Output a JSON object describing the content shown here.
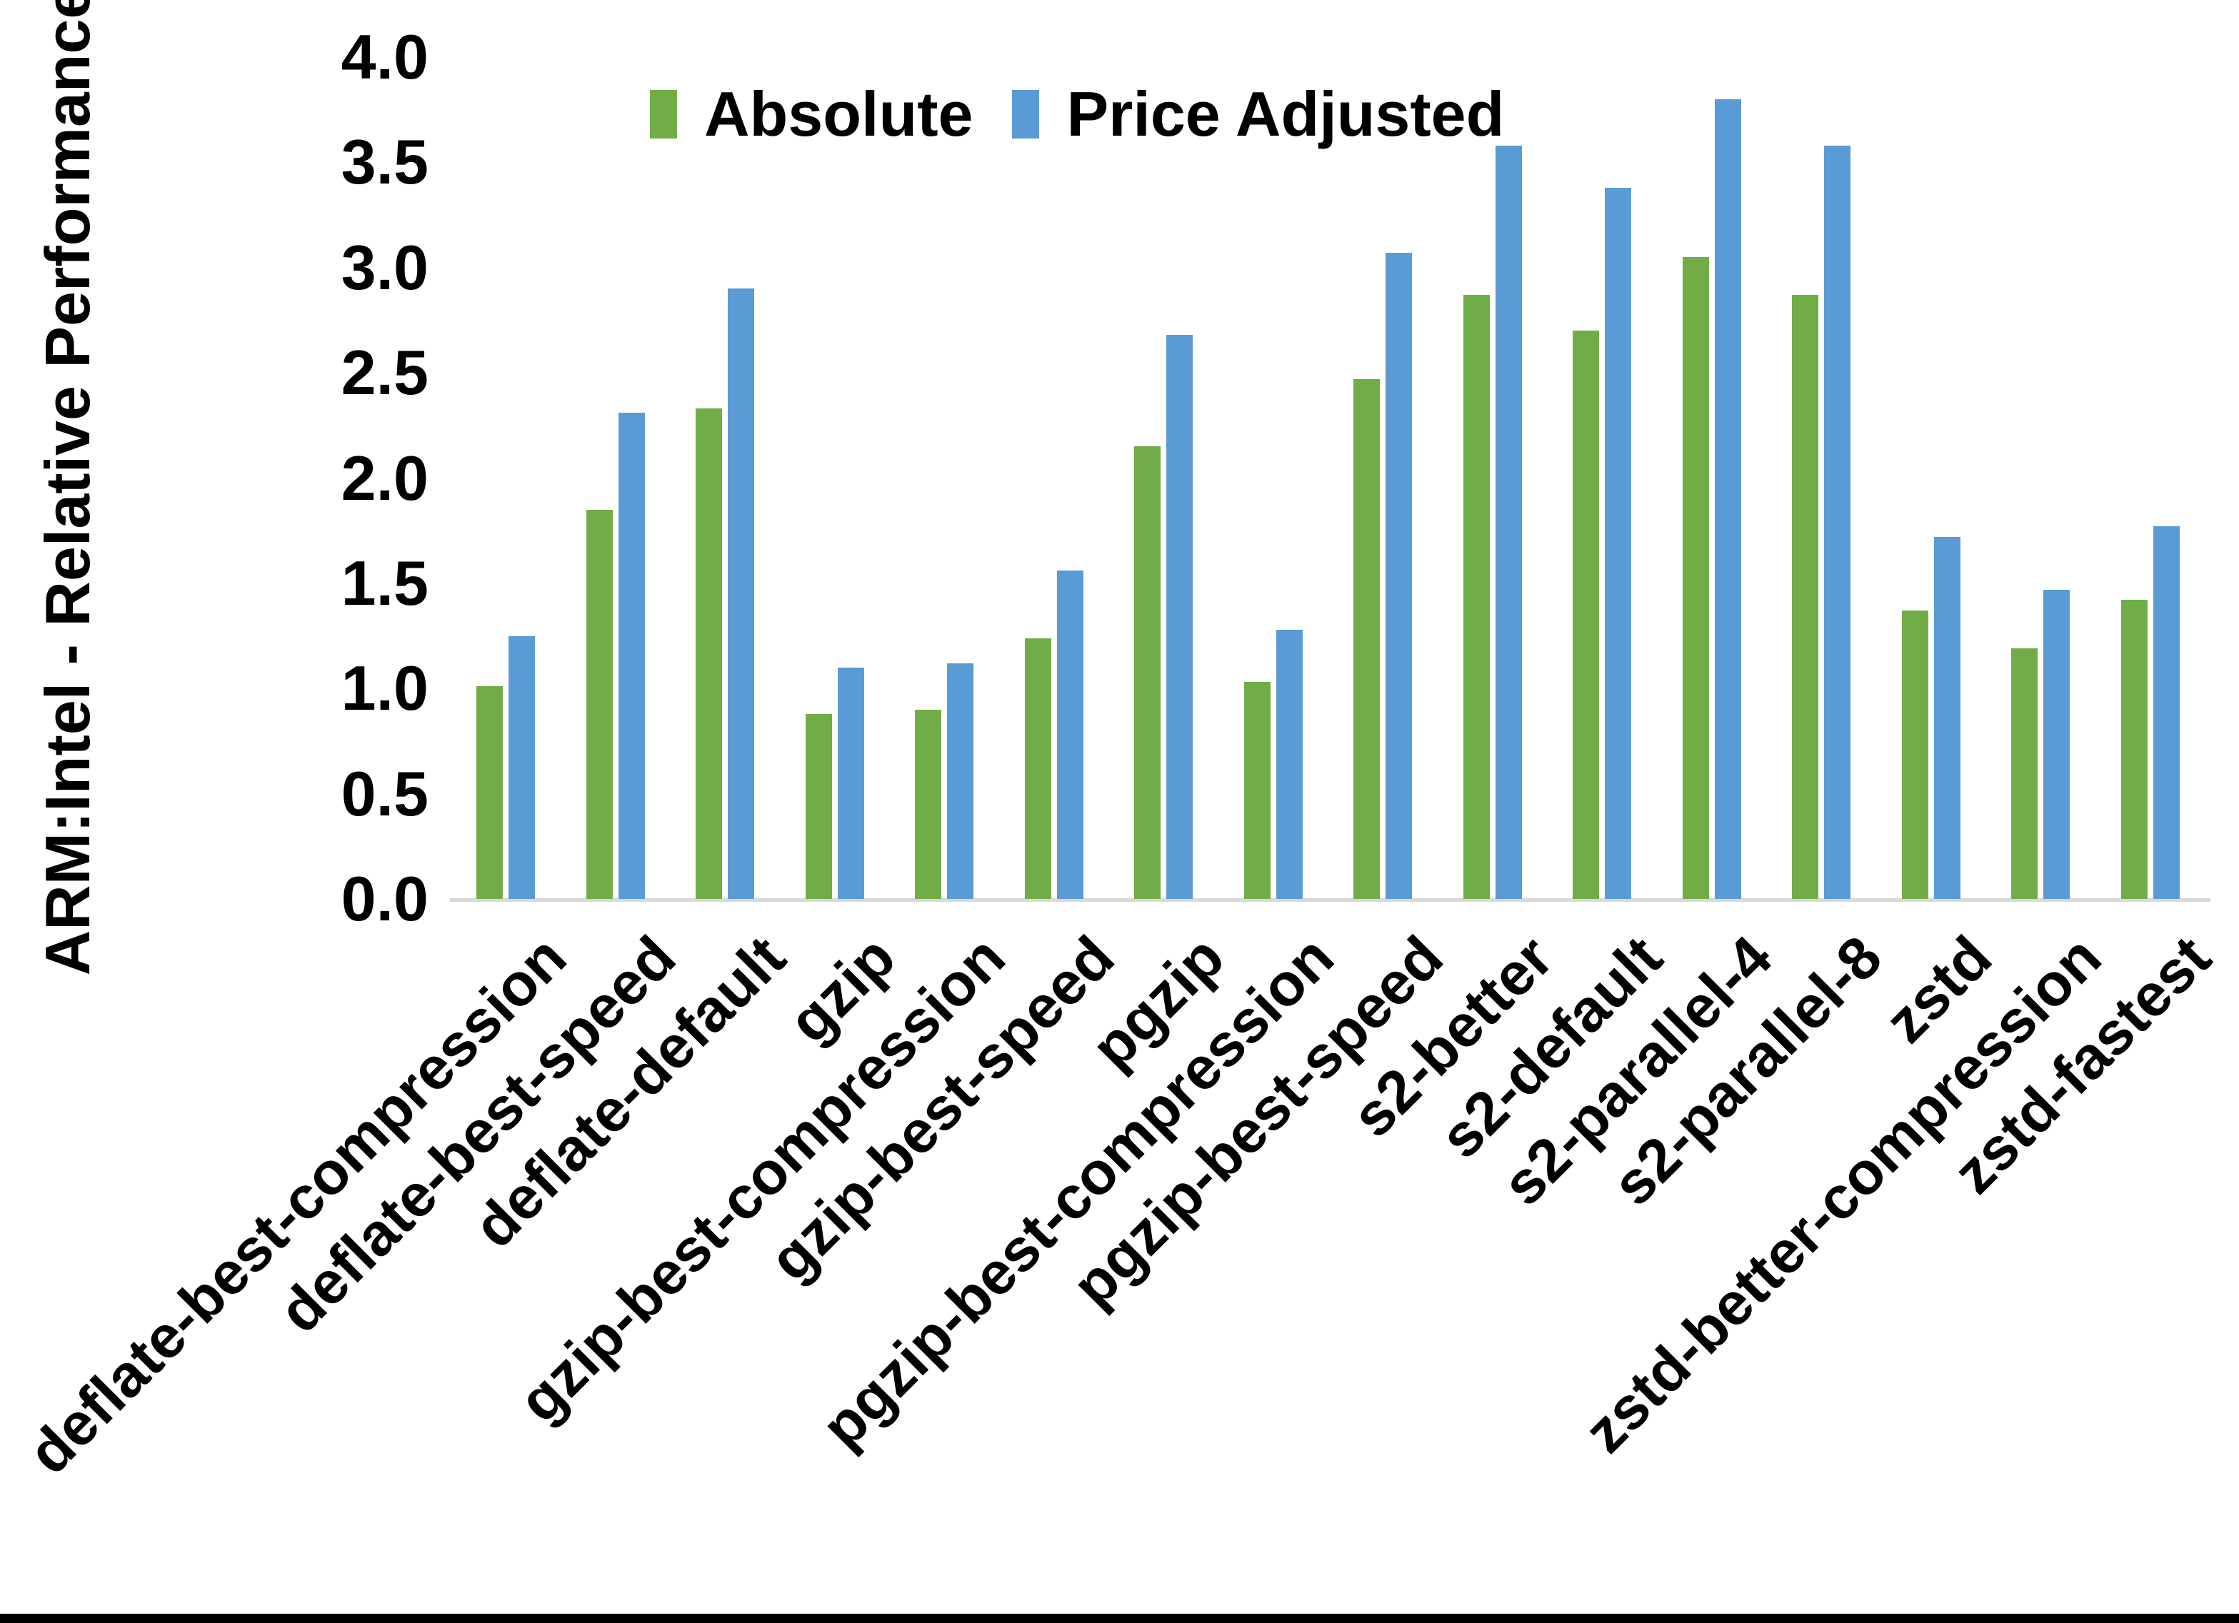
{
  "chart_data": {
    "type": "bar",
    "title": "",
    "xlabel": "",
    "ylabel": "ARM:Intel - Relative Performance",
    "ylim": [
      0.0,
      4.0
    ],
    "ytick_labels": [
      "0.0",
      "0.5",
      "1.0",
      "1.5",
      "2.0",
      "2.5",
      "3.0",
      "3.5",
      "4.0"
    ],
    "grid": false,
    "legend_position": "top-center",
    "categories": [
      "deflate-best-compression",
      "deflate-best-speed",
      "deflate-default",
      "gzip",
      "gzip-best-compression",
      "gzip-best-speed",
      "pgzip",
      "pgzip-best-compression",
      "pgzip-best-speed",
      "s2-better",
      "s2-default",
      "s2-parallel-4",
      "s2-parallel-8",
      "zstd",
      "zstd-better-compression",
      "zstd-fastest"
    ],
    "series": [
      {
        "name": "Absolute",
        "color": "#70AD47",
        "values": [
          1.01,
          1.85,
          2.33,
          0.88,
          0.9,
          1.24,
          2.15,
          1.03,
          2.47,
          2.87,
          2.7,
          3.05,
          2.87,
          1.37,
          1.19,
          1.42
        ]
      },
      {
        "name": "Price Adjusted",
        "color": "#5B9BD5",
        "values": [
          1.25,
          2.31,
          2.9,
          1.1,
          1.12,
          1.56,
          2.68,
          1.28,
          3.07,
          3.58,
          3.38,
          3.8,
          3.58,
          1.72,
          1.47,
          1.77
        ]
      }
    ],
    "axis_line_color": "#D9D9D9"
  }
}
